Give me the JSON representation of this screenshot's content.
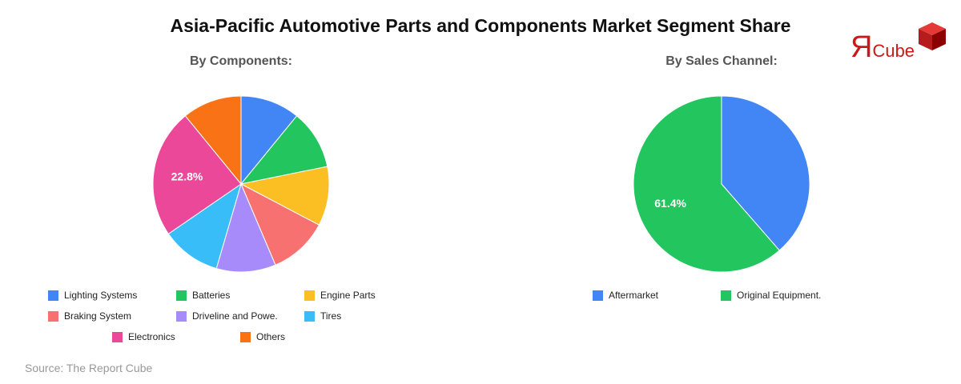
{
  "title": "Asia-Pacific Automotive Parts and Components Market Segment Share",
  "source": "Source: The Report Cube",
  "logo": {
    "mark": "Я",
    "text": "Cube"
  },
  "chart_data": [
    {
      "type": "pie",
      "title": "By Components:",
      "categories": [
        "Lighting Systems",
        "Batteries",
        "Engine Parts",
        "Braking System",
        "Driveline and Powe.",
        "Tires",
        "Electronics",
        "Others"
      ],
      "values": [
        10.5,
        10.5,
        10.5,
        10.5,
        10.5,
        10.5,
        22.8,
        10.5
      ],
      "colors": [
        "#4285f4",
        "#22c55e",
        "#fbbf24",
        "#f87171",
        "#a78bfa",
        "#38bdf8",
        "#ec4899",
        "#f97316"
      ],
      "labels": [
        "",
        "",
        "",
        "",
        "",
        "",
        "22.8%",
        ""
      ],
      "legend_position": "bottom"
    },
    {
      "type": "pie",
      "title": "By Sales Channel:",
      "categories": [
        "Aftermarket",
        "Original Equipment."
      ],
      "values": [
        38.6,
        61.4
      ],
      "colors": [
        "#4285f4",
        "#22c55e"
      ],
      "labels": [
        "",
        "61.4%"
      ],
      "legend_position": "bottom"
    }
  ]
}
